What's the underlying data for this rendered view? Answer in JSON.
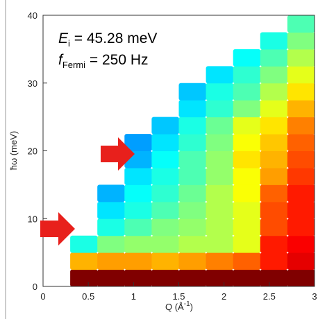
{
  "chart_data": {
    "type": "heatmap",
    "x_label": {
      "text": "Q (Å",
      "superscript": "-1",
      "suffix": ")"
    },
    "y_label": "ħω (meV)",
    "annotations": [
      {
        "symbol": "E",
        "subscript": "i",
        "text": " = 45.28 meV"
      },
      {
        "symbol": "f",
        "subscript": "Fermi",
        "text": " =  250 Hz"
      }
    ],
    "colormap": "jet",
    "zlim": [
      0,
      1
    ],
    "x_edges": [
      0.3,
      0.6,
      0.9,
      1.2,
      1.5,
      1.8,
      2.1,
      2.4,
      2.7,
      3.0
    ],
    "y_edges": [
      0,
      2.5,
      5,
      7.5,
      10,
      12.5,
      15,
      17.5,
      20,
      22.5,
      25,
      27.5,
      30,
      32.5,
      35,
      37.5,
      40
    ],
    "z": [
      [
        1,
        1,
        1,
        1,
        1,
        1,
        1,
        1,
        1
      ],
      [
        0.7,
        0.72,
        0.72,
        0.7,
        0.72,
        0.75,
        0.78,
        0.85,
        0.9
      ],
      [
        0.4,
        0.5,
        0.52,
        0.52,
        0.55,
        0.55,
        0.6,
        0.85,
        0.88
      ],
      [
        null,
        0.4,
        0.45,
        0.5,
        0.52,
        0.55,
        0.6,
        0.8,
        0.85
      ],
      [
        null,
        0.35,
        0.4,
        0.45,
        0.5,
        0.55,
        0.6,
        0.8,
        0.85
      ],
      [
        null,
        0.3,
        0.38,
        0.42,
        0.48,
        0.55,
        0.62,
        0.78,
        0.85
      ],
      [
        null,
        null,
        0.35,
        0.4,
        0.45,
        0.52,
        0.62,
        0.72,
        0.82
      ],
      [
        null,
        null,
        0.3,
        0.38,
        0.45,
        0.52,
        0.65,
        0.7,
        0.8
      ],
      [
        null,
        null,
        0.28,
        0.35,
        0.42,
        0.5,
        0.62,
        0.68,
        0.78
      ],
      [
        null,
        null,
        null,
        0.32,
        0.4,
        0.48,
        0.6,
        0.65,
        0.75
      ],
      [
        null,
        null,
        null,
        null,
        0.35,
        0.42,
        0.5,
        0.6,
        0.7
      ],
      [
        null,
        null,
        null,
        null,
        0.32,
        0.4,
        0.45,
        0.55,
        0.65
      ],
      [
        null,
        null,
        null,
        null,
        null,
        0.35,
        0.42,
        0.5,
        0.6
      ],
      [
        null,
        null,
        null,
        null,
        null,
        null,
        0.38,
        0.45,
        0.55
      ],
      [
        null,
        null,
        null,
        null,
        null,
        null,
        null,
        0.4,
        0.5
      ],
      [
        null,
        null,
        null,
        null,
        null,
        null,
        null,
        null,
        0.45
      ]
    ],
    "xlim": [
      0,
      3
    ],
    "xticks": [
      0,
      0.5,
      1,
      1.5,
      2,
      2.5,
      3
    ],
    "ylim": [
      0,
      40
    ],
    "yticks": [
      0,
      10,
      20,
      30,
      40
    ]
  }
}
